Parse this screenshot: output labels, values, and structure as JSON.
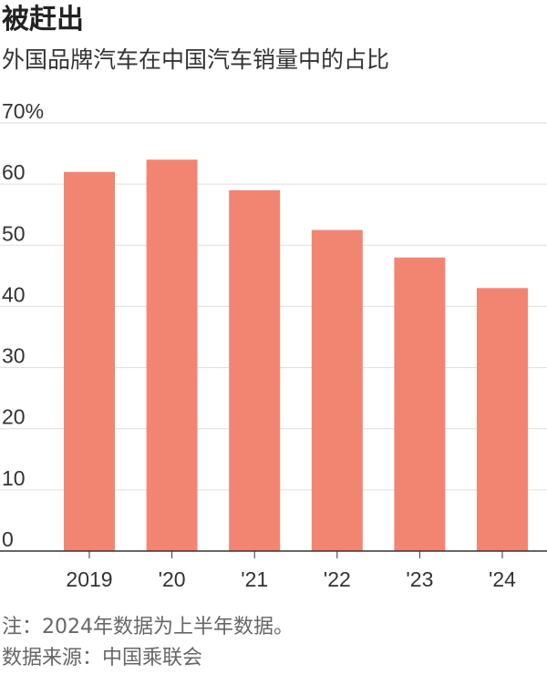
{
  "header": {
    "title": "被赶出",
    "subtitle": "外国品牌汽车在中国汽车销量中的占比"
  },
  "notes": {
    "note": "注：2024年数据为上半年数据。",
    "source": "数据来源：中国乘联会"
  },
  "colors": {
    "bar": "#f28572",
    "grid": "#dddddd",
    "axis": "#333333"
  },
  "chart_data": {
    "type": "bar",
    "categories": [
      "2019",
      "'20",
      "'21",
      "'22",
      "'23",
      "'24"
    ],
    "values": [
      62,
      64,
      59,
      52.5,
      48,
      43
    ],
    "ylim": [
      0,
      70
    ],
    "yticks": [
      0,
      10,
      20,
      30,
      40,
      50,
      60,
      70
    ],
    "ytick_labels": [
      "0",
      "10",
      "20",
      "30",
      "40",
      "50",
      "60",
      "70%"
    ],
    "grid": true,
    "legend": "none"
  }
}
